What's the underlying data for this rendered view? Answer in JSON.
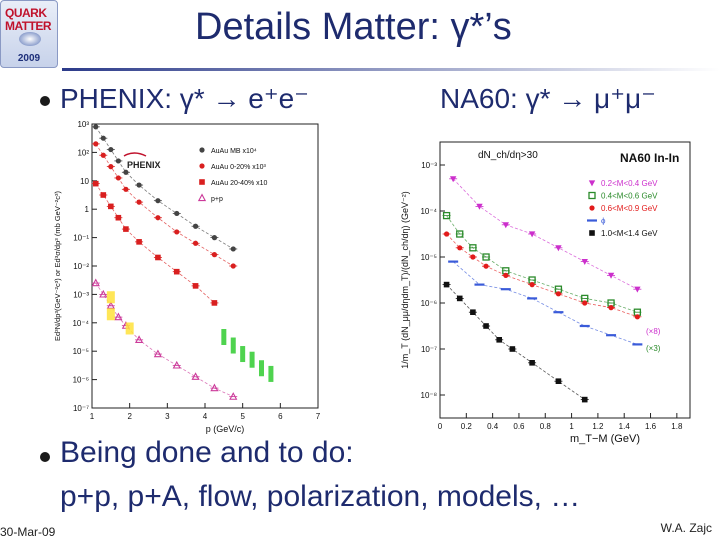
{
  "logo": {
    "line1": "QUARK",
    "line2": "MATTER",
    "year": "2009"
  },
  "title": "Details Matter:  γ*’s",
  "left_header": "PHENIX:  γ* → e⁺e⁻",
  "right_header": "NA60:  γ* → μ⁺μ⁻",
  "bullet2": "Being done and to do:",
  "bullet2_detail": "p+p, p+A, flow, polarization, models, …",
  "footer": {
    "date": "30-Mar-09",
    "author": "W.A. Zajc"
  },
  "chart_data": [
    {
      "type": "scatter",
      "title": "",
      "xlabel": "p  (GeV/c)",
      "ylabel": "Ed³N/dp³(GeV⁻²c³) or Ed³σ/dp³ (mb GeV⁻²c³)",
      "x_ticks": [
        "1",
        "2",
        "3",
        "4",
        "5",
        "6",
        "7"
      ],
      "y_ticks": [
        "10⁻⁷",
        "10⁻⁶",
        "10⁻⁵",
        "10⁻⁴",
        "10⁻³",
        "10⁻²",
        "10⁻¹",
        "1",
        "10",
        "10²",
        "10³"
      ],
      "xlim": [
        1,
        7
      ],
      "ylog": true,
      "ylim_exp": [
        -7,
        3
      ],
      "logo_text": "PHENIX",
      "legend_position": "top-right",
      "series": [
        {
          "name": "AuAu MB x10⁴",
          "color": "#444444",
          "marker": "dot",
          "x": [
            1.1,
            1.3,
            1.5,
            1.7,
            1.9,
            2.25,
            2.75,
            3.25,
            3.75,
            4.25,
            4.75
          ],
          "y": [
            2.9,
            2.5,
            2.1,
            1.7,
            1.3,
            0.85,
            0.3,
            -0.15,
            -0.6,
            -1.0,
            -1.4
          ]
        },
        {
          "name": "AuAu 0-20% x10³",
          "color": "#d91f1f",
          "marker": "dot",
          "x": [
            1.1,
            1.3,
            1.5,
            1.7,
            1.9,
            2.25,
            2.75,
            3.25,
            3.75,
            4.25,
            4.75
          ],
          "y": [
            2.3,
            1.9,
            1.5,
            1.1,
            0.7,
            0.25,
            -0.3,
            -0.8,
            -1.2,
            -1.6,
            -2.0
          ]
        },
        {
          "name": "AuAu 20-40% x10",
          "color": "#d91f1f",
          "marker": "square",
          "x": [
            1.1,
            1.3,
            1.5,
            1.7,
            1.9,
            2.25,
            2.75,
            3.25,
            3.75,
            4.25
          ],
          "y": [
            0.9,
            0.5,
            0.1,
            -0.3,
            -0.7,
            -1.15,
            -1.7,
            -2.2,
            -2.7,
            -3.3
          ]
        },
        {
          "name": "p+p",
          "color": "#cc3a9a",
          "marker": "triangle",
          "x": [
            1.1,
            1.3,
            1.5,
            1.7,
            1.9,
            2.25,
            2.75,
            3.25,
            3.75,
            4.25,
            4.75
          ],
          "y": [
            -2.6,
            -3.0,
            -3.4,
            -3.8,
            -4.1,
            -4.6,
            -5.1,
            -5.5,
            -5.9,
            -6.3,
            -6.6
          ]
        }
      ]
    },
    {
      "type": "scatter",
      "title": "NA60 In-In",
      "annotation": "dN_ch/dη>30",
      "xlabel": "m_T−M (GeV)",
      "ylabel": "1/m_T (dN_μμ/dηdm_T)/(dN_ch/dη) (GeV⁻²)",
      "x_ticks": [
        "0",
        "0.2",
        "0.4",
        "0.6",
        "0.8",
        "1",
        "1.2",
        "1.4",
        "1.6",
        "1.8"
      ],
      "y_ticks": [
        "10⁻⁸",
        "10⁻⁷",
        "10⁻⁶",
        "10⁻⁵",
        "10⁻⁴",
        "10⁻³"
      ],
      "xlim": [
        0,
        1.9
      ],
      "ylog": true,
      "ylim_exp": [
        -8.5,
        -2.5
      ],
      "scale_labels": [
        "(×8)",
        "(×3)"
      ],
      "legend_position": "top-right",
      "series": [
        {
          "name": "0.2<M<0.4 GeV",
          "color": "#cc2fcc",
          "marker": "triangle-down",
          "x": [
            0.1,
            0.3,
            0.5,
            0.7,
            0.9,
            1.1,
            1.3,
            1.5
          ],
          "y": [
            -3.3,
            -3.9,
            -4.3,
            -4.5,
            -4.8,
            -5.1,
            -5.4,
            -5.7
          ]
        },
        {
          "name": "0.4<M<0.6 GeV",
          "color": "#2a8a2a",
          "marker": "square-open",
          "x": [
            0.05,
            0.15,
            0.25,
            0.35,
            0.5,
            0.7,
            0.9,
            1.1,
            1.3,
            1.5
          ],
          "y": [
            -4.1,
            -4.5,
            -4.8,
            -5.0,
            -5.3,
            -5.5,
            -5.7,
            -5.9,
            -6.0,
            -6.2
          ]
        },
        {
          "name": "0.6<M<0.9 GeV",
          "color": "#e21b1b",
          "marker": "dot",
          "x": [
            0.05,
            0.15,
            0.25,
            0.35,
            0.5,
            0.7,
            0.9,
            1.1,
            1.3,
            1.5
          ],
          "y": [
            -4.5,
            -4.8,
            -5.0,
            -5.2,
            -5.4,
            -5.6,
            -5.8,
            -6.0,
            -6.1,
            -6.3
          ]
        },
        {
          "name": "ϕ",
          "color": "#3a5bd9",
          "marker": "dash",
          "x": [
            0.1,
            0.3,
            0.5,
            0.7,
            0.9,
            1.1,
            1.3,
            1.5
          ],
          "y": [
            -5.1,
            -5.6,
            -5.7,
            -5.9,
            -6.2,
            -6.5,
            -6.7,
            -6.9
          ]
        },
        {
          "name": "1.0<M<1.4 GeV",
          "color": "#111111",
          "marker": "square",
          "x": [
            0.05,
            0.15,
            0.25,
            0.35,
            0.45,
            0.55,
            0.7,
            0.9,
            1.1
          ],
          "y": [
            -5.6,
            -5.9,
            -6.2,
            -6.5,
            -6.8,
            -7.0,
            -7.3,
            -7.7,
            -8.1
          ]
        }
      ]
    }
  ]
}
